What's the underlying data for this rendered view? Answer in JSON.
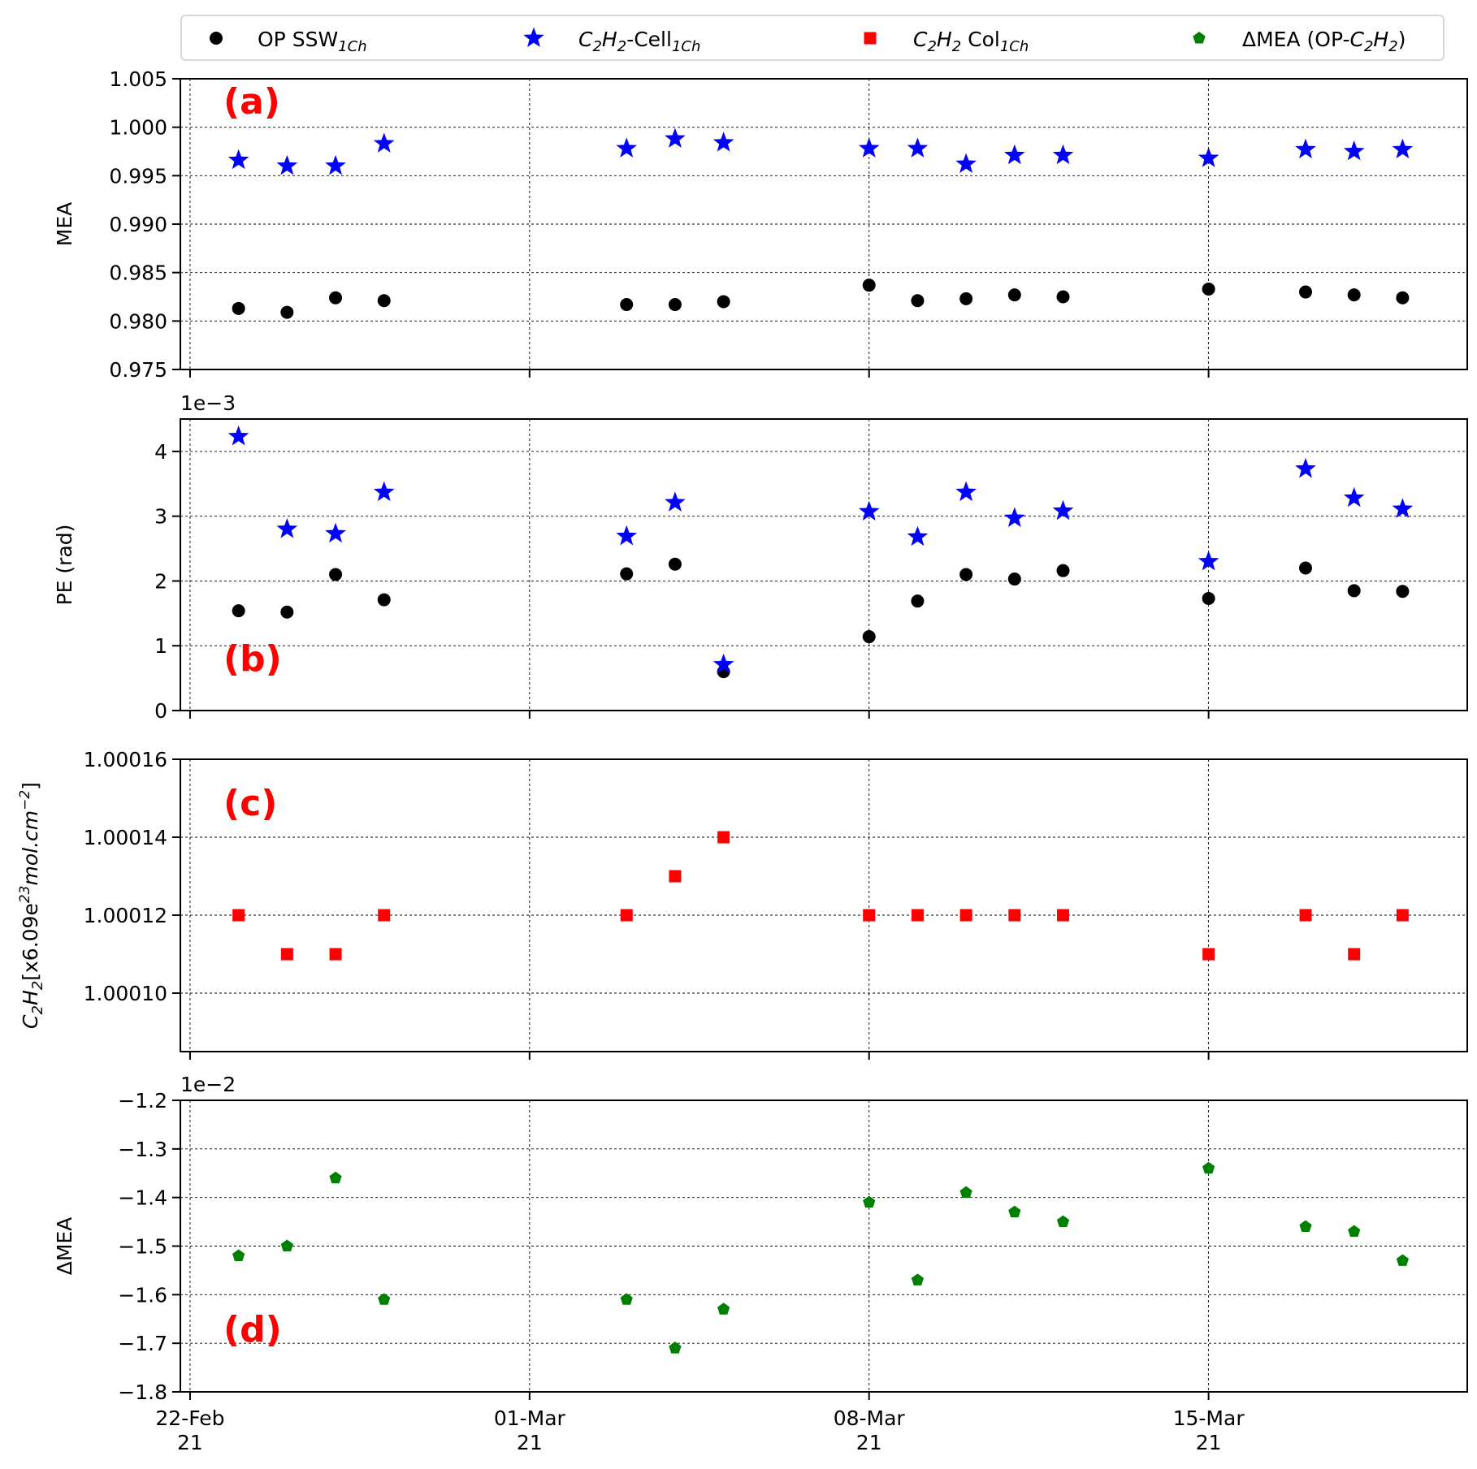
{
  "chart_data": {
    "type": "scatter",
    "x_tick_labels": [
      {
        "date": "2021-02-22",
        "line1": "22-Feb",
        "line2": "21"
      },
      {
        "date": "2021-03-01",
        "line1": "01-Mar",
        "line2": "21"
      },
      {
        "date": "2021-03-08",
        "line1": "08-Mar",
        "line2": "21"
      },
      {
        "date": "2021-03-15",
        "line1": "15-Mar",
        "line2": "21"
      }
    ],
    "xlim": [
      "2021-02-21T19:12",
      "2021-03-20T08:00"
    ],
    "grid": true,
    "legend": {
      "placement": "top",
      "entries": [
        {
          "series": "op",
          "text": "OP SSW",
          "sub": "1Ch",
          "marker": "circle",
          "color": "#000000"
        },
        {
          "series": "cell",
          "pre_it": "C",
          "pre_sub": "2",
          "it2": "H",
          "sub2": "2",
          "text": "-Cell",
          "sub": "1Ch",
          "marker": "star",
          "color": "#0000ff"
        },
        {
          "series": "col",
          "pre_it": "C",
          "pre_sub": "2",
          "it2": "H",
          "sub2": "2",
          "text": " Col",
          "sub": "1Ch",
          "marker": "square",
          "color": "#ff0000"
        },
        {
          "series": "dmea",
          "text": "ΔMEA (OP-",
          "it_c": "C",
          "sub_c": "2",
          "it_h": "H",
          "sub_h": "2",
          "close": ")",
          "marker": "pentagon",
          "color": "#008000"
        }
      ]
    },
    "panels": [
      {
        "tag": "(a)",
        "ylabel": "MEA",
        "ylim": [
          0.975,
          1.005
        ],
        "yticks": [
          0.975,
          0.98,
          0.985,
          0.99,
          0.995,
          1.0,
          1.005
        ],
        "ytick_labels": [
          "0.975",
          "0.980",
          "0.985",
          "0.990",
          "0.995",
          "1.000",
          "1.005"
        ],
        "offset_text": "",
        "series": [
          {
            "key": "op",
            "marker": "circle",
            "color": "#000000",
            "points": [
              [
                "2021-02-23",
                0.9813
              ],
              [
                "2021-02-24",
                0.9809
              ],
              [
                "2021-02-25",
                0.9824
              ],
              [
                "2021-02-26",
                0.9821
              ],
              [
                "2021-03-03",
                0.9817
              ],
              [
                "2021-03-04",
                0.9817
              ],
              [
                "2021-03-05",
                0.982
              ],
              [
                "2021-03-08",
                0.9837
              ],
              [
                "2021-03-09",
                0.9821
              ],
              [
                "2021-03-10",
                0.9823
              ],
              [
                "2021-03-11",
                0.9827
              ],
              [
                "2021-03-12",
                0.9825
              ],
              [
                "2021-03-15",
                0.9833
              ],
              [
                "2021-03-17",
                0.983
              ],
              [
                "2021-03-18",
                0.9827
              ],
              [
                "2021-03-19",
                0.9824
              ]
            ]
          },
          {
            "key": "cell",
            "marker": "star",
            "color": "#0000ff",
            "points": [
              [
                "2021-02-23",
                0.9966
              ],
              [
                "2021-02-24",
                0.996
              ],
              [
                "2021-02-25",
                0.996
              ],
              [
                "2021-02-26",
                0.9983
              ],
              [
                "2021-03-03",
                0.9978
              ],
              [
                "2021-03-04",
                0.9988
              ],
              [
                "2021-03-05",
                0.9984
              ],
              [
                "2021-03-08",
                0.9978
              ],
              [
                "2021-03-09",
                0.9978
              ],
              [
                "2021-03-10",
                0.9962
              ],
              [
                "2021-03-11",
                0.9971
              ],
              [
                "2021-03-12",
                0.9971
              ],
              [
                "2021-03-15",
                0.9968
              ],
              [
                "2021-03-17",
                0.9977
              ],
              [
                "2021-03-18",
                0.9975
              ],
              [
                "2021-03-19",
                0.9977
              ]
            ]
          }
        ]
      },
      {
        "tag": "(b)",
        "ylabel": "PE (rad)",
        "ylim": [
          0,
          4.5
        ],
        "yticks": [
          0,
          1,
          2,
          3,
          4
        ],
        "ytick_labels": [
          "0",
          "1",
          "2",
          "3",
          "4"
        ],
        "offset_text": "1e−3",
        "series": [
          {
            "key": "op",
            "marker": "circle",
            "color": "#000000",
            "points": [
              [
                "2021-02-23",
                1.54
              ],
              [
                "2021-02-24",
                1.52
              ],
              [
                "2021-02-25",
                2.1
              ],
              [
                "2021-02-26",
                1.71
              ],
              [
                "2021-03-03",
                2.11
              ],
              [
                "2021-03-04",
                2.26
              ],
              [
                "2021-03-05",
                0.6
              ],
              [
                "2021-03-08",
                1.14
              ],
              [
                "2021-03-09",
                1.69
              ],
              [
                "2021-03-10",
                2.1
              ],
              [
                "2021-03-11",
                2.03
              ],
              [
                "2021-03-12",
                2.16
              ],
              [
                "2021-03-15",
                1.73
              ],
              [
                "2021-03-17",
                2.2
              ],
              [
                "2021-03-18",
                1.85
              ],
              [
                "2021-03-19",
                1.84
              ]
            ]
          },
          {
            "key": "cell",
            "marker": "star",
            "color": "#0000ff",
            "points": [
              [
                "2021-02-23",
                4.23
              ],
              [
                "2021-02-24",
                2.8
              ],
              [
                "2021-02-25",
                2.73
              ],
              [
                "2021-02-26",
                3.37
              ],
              [
                "2021-03-03",
                2.69
              ],
              [
                "2021-03-04",
                3.21
              ],
              [
                "2021-03-05",
                0.71
              ],
              [
                "2021-03-08",
                3.07
              ],
              [
                "2021-03-09",
                2.68
              ],
              [
                "2021-03-10",
                3.37
              ],
              [
                "2021-03-11",
                2.97
              ],
              [
                "2021-03-12",
                3.08
              ],
              [
                "2021-03-15",
                2.3
              ],
              [
                "2021-03-17",
                3.73
              ],
              [
                "2021-03-18",
                3.28
              ],
              [
                "2021-03-19",
                3.11
              ]
            ]
          }
        ]
      },
      {
        "tag": "(c)",
        "ylabel_parts": {
          "c": "C",
          "s1": "2",
          "h": "H",
          "s2": "2",
          "rest": "[x6.09e",
          "exp": "23",
          "unit": "mol.cm",
          "uexp": "−2",
          "close": "]"
        },
        "ylim": [
          1.000085,
          1.00016
        ],
        "yticks": [
          1.0001,
          1.00012,
          1.00014,
          1.00016
        ],
        "ytick_labels": [
          "1.00010",
          "1.00012",
          "1.00014",
          "1.00016"
        ],
        "offset_text": "",
        "series": [
          {
            "key": "col",
            "marker": "square",
            "color": "#ff0000",
            "points": [
              [
                "2021-02-23",
                1.00012
              ],
              [
                "2021-02-24",
                1.00011
              ],
              [
                "2021-02-25",
                1.00011
              ],
              [
                "2021-02-26",
                1.00012
              ],
              [
                "2021-03-03",
                1.00012
              ],
              [
                "2021-03-04",
                1.00013
              ],
              [
                "2021-03-05",
                1.00014
              ],
              [
                "2021-03-08",
                1.00012
              ],
              [
                "2021-03-09",
                1.00012
              ],
              [
                "2021-03-10",
                1.00012
              ],
              [
                "2021-03-11",
                1.00012
              ],
              [
                "2021-03-12",
                1.00012
              ],
              [
                "2021-03-15",
                1.00011
              ],
              [
                "2021-03-17",
                1.00012
              ],
              [
                "2021-03-18",
                1.00011
              ],
              [
                "2021-03-19",
                1.00012
              ]
            ]
          }
        ]
      },
      {
        "tag": "(d)",
        "ylabel": "ΔMEA",
        "ylim": [
          -1.8,
          -1.2
        ],
        "yticks": [
          -1.8,
          -1.7,
          -1.6,
          -1.5,
          -1.4,
          -1.3,
          -1.2
        ],
        "ytick_labels": [
          "−1.8",
          "−1.7",
          "−1.6",
          "−1.5",
          "−1.4",
          "−1.3",
          "−1.2"
        ],
        "offset_text": "1e−2",
        "series": [
          {
            "key": "dmea",
            "marker": "pentagon",
            "color": "#008000",
            "points": [
              [
                "2021-02-23",
                -1.52
              ],
              [
                "2021-02-24",
                -1.5
              ],
              [
                "2021-02-25",
                -1.36
              ],
              [
                "2021-02-26",
                -1.61
              ],
              [
                "2021-03-03",
                -1.61
              ],
              [
                "2021-03-04",
                -1.71
              ],
              [
                "2021-03-05",
                -1.63
              ],
              [
                "2021-03-08",
                -1.41
              ],
              [
                "2021-03-09",
                -1.57
              ],
              [
                "2021-03-10",
                -1.39
              ],
              [
                "2021-03-11",
                -1.43
              ],
              [
                "2021-03-12",
                -1.45
              ],
              [
                "2021-03-15",
                -1.34
              ],
              [
                "2021-03-17",
                -1.46
              ],
              [
                "2021-03-18",
                -1.47
              ],
              [
                "2021-03-19",
                -1.53
              ]
            ]
          }
        ]
      }
    ]
  }
}
